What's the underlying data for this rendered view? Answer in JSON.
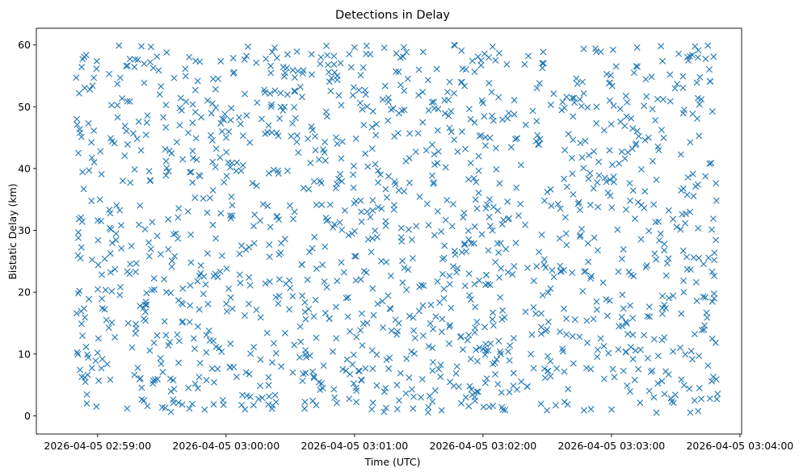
{
  "chart_data": {
    "type": "scatter",
    "title": "Detections in Delay",
    "xlabel": "Time (UTC)",
    "ylabel": "Bistatic Delay (km)",
    "marker": "x",
    "color": "#1f77b4",
    "x_start_label": "2026-04-05 02:58:50",
    "x_end_label": "2026-04-05 03:03:50",
    "xlim_seconds": [
      -18.6,
      310.8
    ],
    "ylim": [
      -2.95,
      62.7
    ],
    "xticks": [
      {
        "value": 10,
        "label": "2026-04-05 02:59:00"
      },
      {
        "value": 70,
        "label": "2026-04-05 03:00:00"
      },
      {
        "value": 130,
        "label": "2026-04-05 03:01:00"
      },
      {
        "value": 190,
        "label": "2026-04-05 03:02:00"
      },
      {
        "value": 250,
        "label": "2026-04-05 03:03:00"
      },
      {
        "value": 310,
        "label": "2026-04-05 03:04:00"
      }
    ],
    "yticks": [
      0,
      10,
      20,
      30,
      40,
      50,
      60
    ],
    "n_points": 1500,
    "distribution": "approximately uniform random: time 2026-04-05 02:58:50 to 03:03:50, delay 0.5 to 60 km",
    "sample_points_sec_km": [
      [
        0,
        54.7
      ],
      [
        0.5,
        47.1
      ],
      [
        1,
        28.8
      ],
      [
        1,
        42.5
      ],
      [
        1.5,
        20.2
      ],
      [
        2,
        25.5
      ],
      [
        2.5,
        14.9
      ],
      [
        2.8,
        31.4
      ],
      [
        3,
        57.7
      ],
      [
        3.5,
        36.7
      ],
      [
        4,
        6.2
      ],
      [
        4.3,
        5.5
      ],
      [
        5,
        2.0
      ],
      [
        6,
        39.7
      ],
      [
        10,
        10.2
      ],
      [
        20,
        59.9
      ],
      [
        21,
        30.8
      ],
      [
        60,
        1.0
      ],
      [
        130,
        59.6
      ],
      [
        150,
        1.1
      ],
      [
        245,
        58.9
      ],
      [
        260,
        13.1
      ],
      [
        295,
        59.9
      ],
      [
        296,
        54.1
      ],
      [
        296,
        2.8
      ],
      [
        297,
        23.3
      ],
      [
        298,
        25.2
      ],
      [
        298,
        19.0
      ],
      [
        299,
        5.9
      ],
      [
        299,
        34.8
      ]
    ]
  }
}
